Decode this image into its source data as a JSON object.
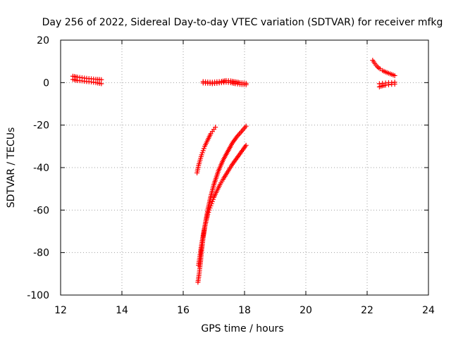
{
  "chart_data": {
    "type": "scatter",
    "title": "Day 256 of 2022, Sidereal Day-to-day VTEC variation (SDTVAR) for receiver mfkg",
    "xlabel": "GPS time / hours",
    "ylabel": "SDTVAR / TECUs",
    "xlim": [
      12,
      24
    ],
    "ylim": [
      -100,
      20
    ],
    "xticks": [
      12,
      14,
      16,
      18,
      20,
      22,
      24
    ],
    "yticks": [
      -100,
      -80,
      -60,
      -40,
      -20,
      0,
      20
    ],
    "grid": true,
    "marker": "+",
    "color": "#ff0000",
    "series": [
      {
        "x": [
          12.4,
          12.55,
          12.7,
          12.85,
          13.0,
          13.15,
          13.33
        ],
        "y": [
          3.0,
          2.6,
          2.3,
          2.0,
          1.8,
          1.6,
          1.4
        ]
      },
      {
        "x": [
          12.4,
          12.55,
          12.7,
          12.85,
          13.0,
          13.15,
          13.33
        ],
        "y": [
          1.5,
          1.0,
          0.8,
          0.5,
          0.3,
          0.0,
          -0.5
        ]
      },
      {
        "x": [
          16.65,
          16.8,
          16.95,
          17.1,
          17.25,
          17.4,
          17.55,
          17.7,
          17.85,
          18.05
        ],
        "y": [
          0.5,
          0.3,
          0.2,
          0.4,
          0.6,
          1.0,
          0.8,
          0.4,
          0.0,
          -0.3
        ]
      },
      {
        "x": [
          16.65,
          16.8,
          16.95,
          17.1,
          17.25,
          17.4,
          17.55,
          17.7,
          17.85,
          18.05
        ],
        "y": [
          -0.2,
          -0.3,
          -0.5,
          -0.3,
          0.0,
          0.2,
          0.0,
          -0.5,
          -0.8,
          -1.0
        ]
      },
      {
        "x": [
          16.45,
          16.5,
          16.55,
          16.6,
          16.65,
          16.7,
          16.75,
          16.8,
          16.85,
          16.9,
          16.95,
          17.0,
          17.05
        ],
        "y": [
          -42.5,
          -39.0,
          -36.5,
          -34.0,
          -32.0,
          -30.0,
          -28.5,
          -27.0,
          -25.5,
          -24.0,
          -23.0,
          -22.0,
          -21.0
        ]
      },
      {
        "x": [
          16.48,
          16.52,
          16.56,
          16.6,
          16.65,
          16.72,
          16.8,
          16.9,
          17.0,
          17.15,
          17.3,
          17.45,
          17.6,
          17.75,
          17.9,
          18.05
        ],
        "y": [
          -94.0,
          -90.0,
          -85.0,
          -79.0,
          -73.0,
          -66.5,
          -60.0,
          -53.5,
          -48.0,
          -41.5,
          -36.5,
          -32.5,
          -28.5,
          -25.5,
          -23.0,
          -20.5
        ]
      },
      {
        "x": [
          16.5,
          16.55,
          16.6,
          16.65,
          16.7,
          16.75,
          16.8,
          16.85,
          16.9,
          16.95,
          17.0,
          17.1,
          17.2,
          17.3,
          17.45,
          17.6,
          17.75,
          17.9,
          18.05
        ],
        "y": [
          -86.0,
          -81.0,
          -76.0,
          -72.0,
          -68.0,
          -65.0,
          -62.0,
          -60.0,
          -58.0,
          -56.0,
          -54.0,
          -51.0,
          -48.0,
          -45.5,
          -42.0,
          -38.5,
          -35.5,
          -32.5,
          -29.5
        ]
      },
      {
        "x": [
          22.18,
          22.25,
          22.33,
          22.42,
          22.5,
          22.6,
          22.7,
          22.8,
          22.9
        ],
        "y": [
          10.5,
          9.0,
          7.5,
          6.5,
          5.7,
          5.0,
          4.4,
          3.9,
          3.3
        ]
      },
      {
        "x": [
          22.4,
          22.5,
          22.6,
          22.7,
          22.8,
          22.9
        ],
        "y": [
          -2.0,
          -1.5,
          -1.2,
          -1.0,
          -0.8,
          -0.7
        ]
      },
      {
        "x": [
          22.4,
          22.5,
          22.6,
          22.7,
          22.8,
          22.9
        ],
        "y": [
          -0.5,
          -0.3,
          -0.2,
          0.0,
          0.0,
          0.2
        ]
      }
    ]
  }
}
